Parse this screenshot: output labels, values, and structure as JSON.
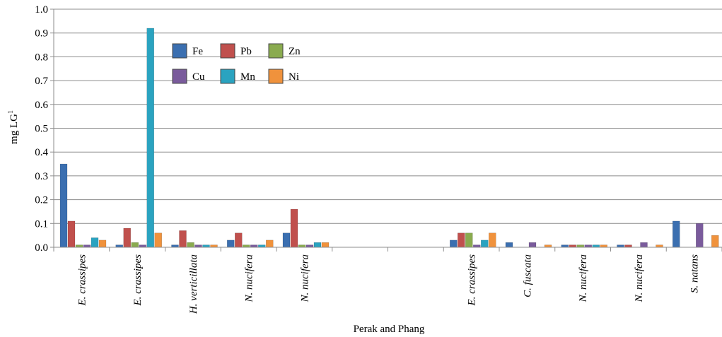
{
  "chart_data": {
    "type": "bar",
    "xlabel": "Perak and Phang",
    "ylabel": "mg LG",
    "ylabel_sup": "1",
    "ylim": [
      0,
      1.0
    ],
    "yticks": [
      "0.0",
      "0.1",
      "0.2",
      "0.3",
      "0.4",
      "0.5",
      "0.6",
      "0.7",
      "0.8",
      "0.9",
      "1.0"
    ],
    "grid": true,
    "legend_position": "top-left",
    "categories": [
      "E. crassipes",
      "E. crassipes",
      "H. verticillata",
      "N. nucifera",
      "N. nucifera",
      "",
      "",
      "E. crassipes",
      "C. fuscata",
      "N. nucifera",
      "N. nucifera",
      "S. natans"
    ],
    "series": [
      {
        "name": "Fe",
        "color": "#3b6fb0",
        "values": [
          0.35,
          0.01,
          0.01,
          0.03,
          0.06,
          null,
          null,
          0.03,
          0.02,
          0.01,
          0.01,
          0.11
        ]
      },
      {
        "name": "Pb",
        "color": "#c0504d",
        "values": [
          0.11,
          0.08,
          0.07,
          0.06,
          0.16,
          null,
          null,
          0.06,
          0,
          0.01,
          0.01,
          0
        ]
      },
      {
        "name": "Zn",
        "color": "#8aab4f",
        "values": [
          0.01,
          0.02,
          0.02,
          0.01,
          0.01,
          null,
          null,
          0.06,
          0,
          0.01,
          0,
          0
        ]
      },
      {
        "name": "Cu",
        "color": "#7a5b9c",
        "values": [
          0.01,
          0.01,
          0.01,
          0.01,
          0.01,
          null,
          null,
          0.01,
          0.02,
          0.01,
          0.02,
          0.1
        ]
      },
      {
        "name": "Mn",
        "color": "#2aa3c0",
        "values": [
          0.04,
          0.92,
          0.01,
          0.01,
          0.02,
          null,
          null,
          0.03,
          0,
          0.01,
          0,
          0
        ]
      },
      {
        "name": "Ni",
        "color": "#f0923c",
        "values": [
          0.03,
          0.06,
          0.01,
          0.03,
          0.02,
          null,
          null,
          0.06,
          0.01,
          0.01,
          0.01,
          0.05
        ]
      }
    ]
  }
}
